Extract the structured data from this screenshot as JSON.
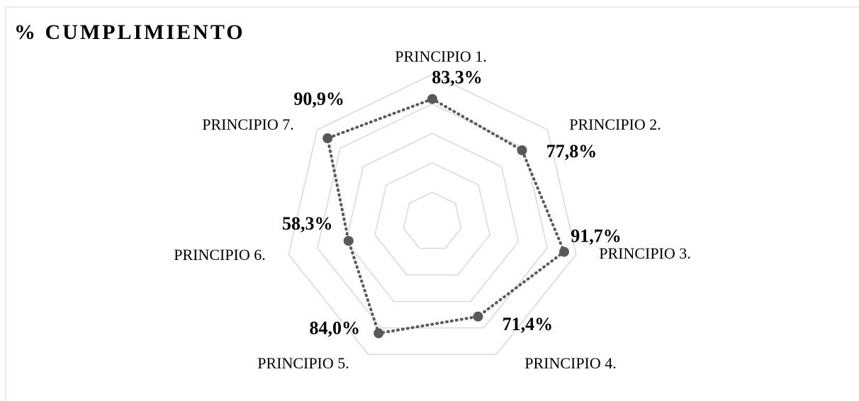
{
  "chart_data": {
    "type": "radar",
    "title": "% CUMPLIMIENTO",
    "categories": [
      "PRINCIPIO 1.",
      "PRINCIPIO 2.",
      "PRINCIPIO 3.",
      "PRINCIPIO 4.",
      "PRINCIPIO 5.",
      "PRINCIPIO 6.",
      "PRINCIPIO 7."
    ],
    "values": [
      83.3,
      77.8,
      91.7,
      71.4,
      84.0,
      58.3,
      90.9
    ],
    "value_labels": [
      "83,3%",
      "77,8%",
      "91,7%",
      "71,4%",
      "84,0%",
      "58,3%",
      "90,9%"
    ],
    "color": "#595959",
    "grid_color": "#d9d9d9",
    "ylim": [
      0,
      100
    ],
    "yticks": [
      0,
      20,
      40,
      60,
      80,
      100
    ],
    "grid": true
  }
}
